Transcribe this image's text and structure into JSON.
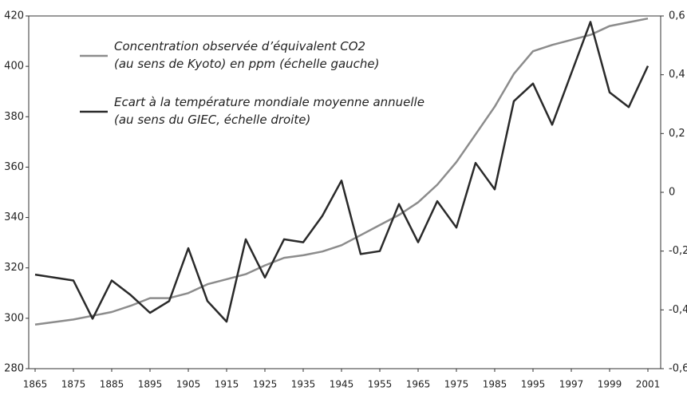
{
  "chart_data": {
    "type": "line",
    "x": [
      1865,
      1875,
      1880,
      1885,
      1890,
      1895,
      1900,
      1905,
      1910,
      1915,
      1920,
      1925,
      1930,
      1935,
      1940,
      1945,
      1950,
      1955,
      1960,
      1965,
      1970,
      1975,
      1980,
      1985,
      1990,
      1995,
      1996,
      1998,
      1999,
      2000,
      2001
    ],
    "xticks": [
      1865,
      1875,
      1885,
      1895,
      1905,
      1915,
      1925,
      1935,
      1945,
      1955,
      1965,
      1975,
      1985,
      1995,
      1997,
      1999,
      2001
    ],
    "series": [
      {
        "name": "Concentration observée d’équivalent CO2\n(au sens de Kyoto) en ppm (échelle gauche)",
        "color": "#8c8c8c",
        "axis": "y",
        "values": [
          297.5,
          299.5,
          301,
          302.5,
          305,
          308,
          308,
          310,
          313.5,
          315.5,
          317.5,
          321,
          324,
          325,
          326.5,
          329,
          333,
          337,
          341,
          346,
          353,
          362,
          373,
          384,
          397,
          406,
          408.5,
          412.5,
          416,
          417.5,
          419
        ]
      },
      {
        "name": "Ecart à la température mondiale moyenne annuelle\n(au sens du GIEC, échelle droite)",
        "color": "#2a2a2a",
        "axis": "y2",
        "values": [
          -0.28,
          -0.3,
          -0.43,
          -0.3,
          -0.35,
          -0.41,
          -0.37,
          -0.19,
          -0.37,
          -0.44,
          -0.16,
          -0.29,
          -0.16,
          -0.17,
          -0.08,
          0.04,
          -0.21,
          -0.2,
          -0.04,
          -0.17,
          -0.03,
          -0.12,
          0.1,
          0.01,
          0.31,
          0.37,
          0.23,
          0.58,
          0.34,
          0.29,
          0.43
        ]
      }
    ],
    "ylim": [
      280,
      420
    ],
    "yticks": [
      280,
      300,
      320,
      340,
      360,
      380,
      400,
      420
    ],
    "y2lim": [
      -0.6,
      0.6
    ],
    "y2ticks": [
      {
        "value": -0.6,
        "label": "-0,6"
      },
      {
        "value": -0.4,
        "label": "-0,4"
      },
      {
        "value": -0.2,
        "label": "-0,2"
      },
      0,
      {
        "value": 0.2,
        "label": "0,2"
      },
      {
        "value": 0.4,
        "label": "0,4"
      },
      {
        "value": 0.6,
        "label": "0,6"
      }
    ],
    "grid": false
  }
}
